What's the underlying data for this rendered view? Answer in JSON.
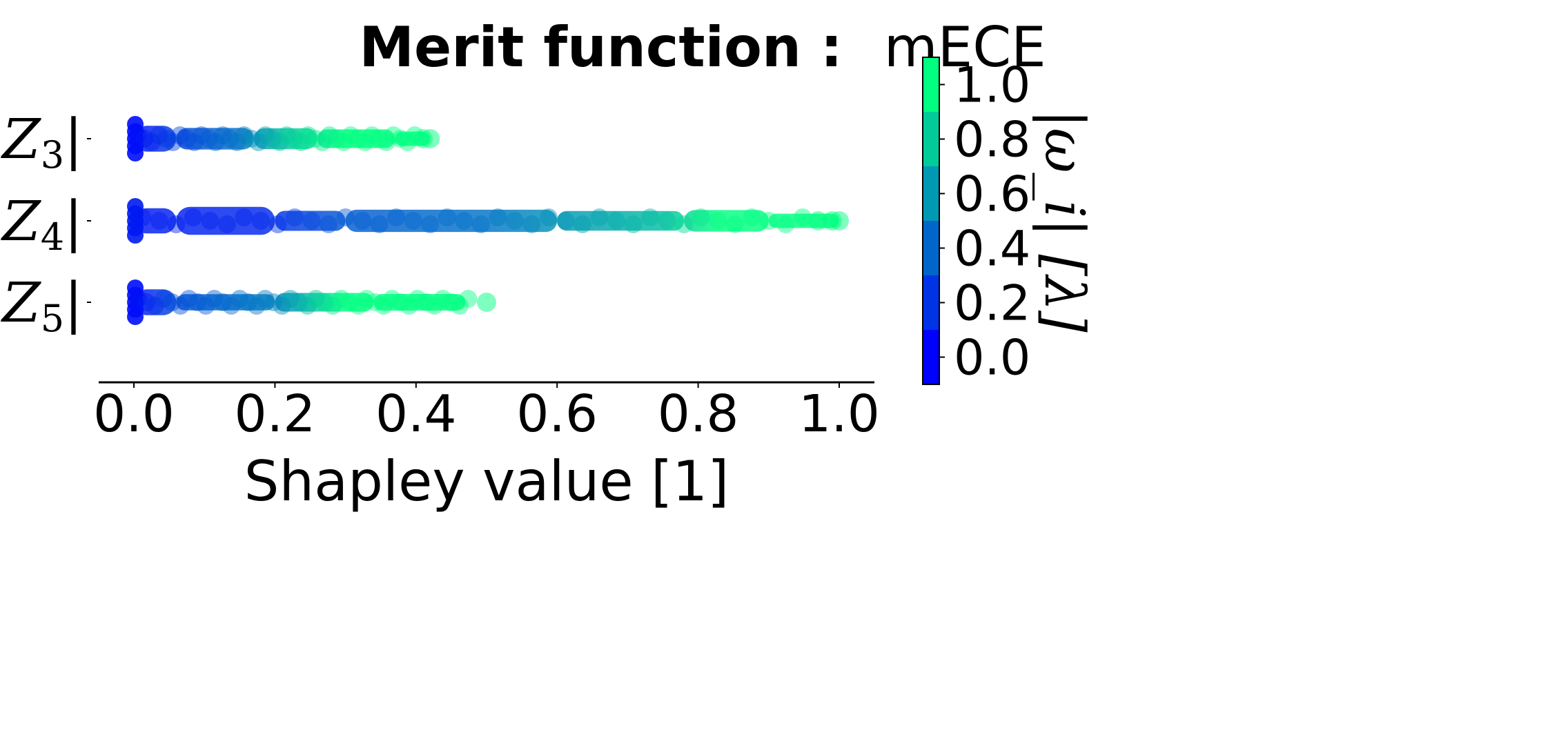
{
  "chart_data": {
    "type": "scatter",
    "subtype": "shap-beeswarm",
    "title": {
      "bold": "Merit function :",
      "normal": "mECE"
    },
    "xlabel": "Shapley value [1]",
    "ylabel": "",
    "xlim": [
      -0.05,
      1.05
    ],
    "xticks": [
      "0.0",
      "0.2",
      "0.4",
      "0.6",
      "0.8",
      "1.0"
    ],
    "grid": false,
    "features": [
      {
        "label_base": "|Z",
        "label_sub": "3",
        "label_end": "|",
        "max": 0.42,
        "segments": [
          {
            "x0": 0.0,
            "x1": 0.06,
            "w": 0.72
          },
          {
            "x0": 0.06,
            "x1": 0.17,
            "w": 0.6
          },
          {
            "x0": 0.17,
            "x1": 0.26,
            "w": 0.58
          },
          {
            "x0": 0.26,
            "x1": 0.37,
            "w": 0.52
          },
          {
            "x0": 0.37,
            "x1": 0.42,
            "w": 0.4
          }
        ],
        "outliers": [
          0.41,
          0.42
        ],
        "color_stops": [
          [
            0.0,
            0.05
          ],
          [
            0.06,
            0.25
          ],
          [
            0.15,
            0.45
          ],
          [
            0.22,
            0.8
          ],
          [
            0.3,
            1.0
          ],
          [
            0.42,
            1.0
          ]
        ]
      },
      {
        "label_base": "|Z",
        "label_sub": "4",
        "label_end": "|",
        "max": 1.0,
        "segments": [
          {
            "x0": 0.0,
            "x1": 0.06,
            "w": 0.7
          },
          {
            "x0": 0.06,
            "x1": 0.2,
            "w": 0.78
          },
          {
            "x0": 0.2,
            "x1": 0.3,
            "w": 0.56
          },
          {
            "x0": 0.3,
            "x1": 0.6,
            "w": 0.62
          },
          {
            "x0": 0.6,
            "x1": 0.78,
            "w": 0.55
          },
          {
            "x0": 0.78,
            "x1": 0.9,
            "w": 0.6
          },
          {
            "x0": 0.9,
            "x1": 1.0,
            "w": 0.4
          }
        ],
        "outliers": [
          0.97,
          0.99,
          1.0
        ],
        "color_stops": [
          [
            0.0,
            0.1
          ],
          [
            0.18,
            0.15
          ],
          [
            0.3,
            0.35
          ],
          [
            0.5,
            0.45
          ],
          [
            0.62,
            0.6
          ],
          [
            0.75,
            0.75
          ],
          [
            0.83,
            1.0
          ],
          [
            1.0,
            1.0
          ]
        ]
      },
      {
        "label_base": "|Z",
        "label_sub": "5",
        "label_end": "|",
        "max": 0.5,
        "segments": [
          {
            "x0": 0.0,
            "x1": 0.06,
            "w": 0.72
          },
          {
            "x0": 0.06,
            "x1": 0.2,
            "w": 0.45
          },
          {
            "x0": 0.2,
            "x1": 0.34,
            "w": 0.52
          },
          {
            "x0": 0.34,
            "x1": 0.47,
            "w": 0.46
          }
        ],
        "outliers": [
          0.5
        ],
        "color_stops": [
          [
            0.0,
            0.05
          ],
          [
            0.06,
            0.3
          ],
          [
            0.2,
            0.5
          ],
          [
            0.27,
            0.85
          ],
          [
            0.3,
            1.0
          ],
          [
            0.5,
            1.0
          ]
        ]
      }
    ],
    "colorbar": {
      "label": "|ω_i| [λ]",
      "range": [
        -0.1,
        1.1
      ],
      "ticks": [
        "0.0",
        "0.2",
        "0.4",
        "0.6",
        "0.8",
        "1.0"
      ],
      "bands": [
        "#0000ff",
        "#0033e6",
        "#0066cc",
        "#0099b3",
        "#00cc99",
        "#00ff80"
      ],
      "placement": "right"
    }
  }
}
